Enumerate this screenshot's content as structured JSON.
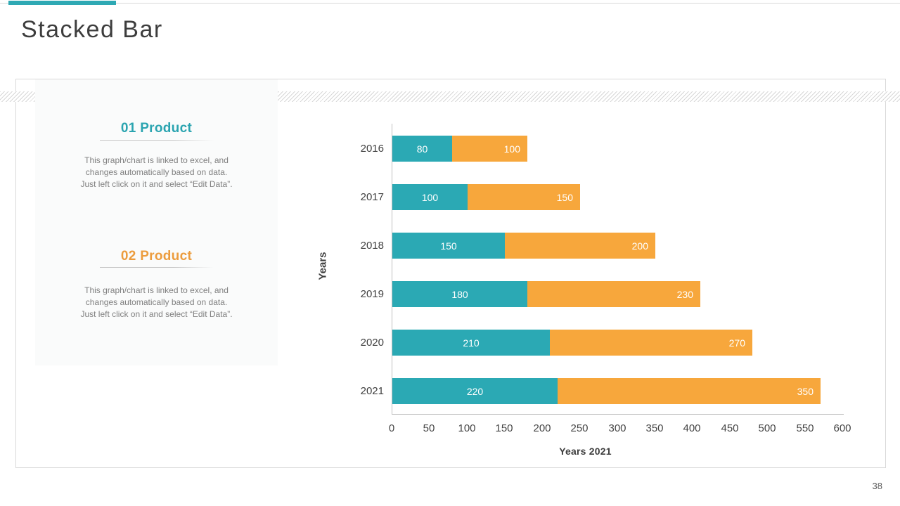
{
  "slide": {
    "title": "Stacked Bar",
    "page_number": "38",
    "accent_color": "#2EA9B4"
  },
  "info_panel": {
    "sections": [
      {
        "heading": "01 Product",
        "heading_color": "#2AA4B0",
        "description_lines": [
          "This graph/chart is linked to excel, and",
          "changes automatically based on data.",
          "Just left click on it and select “Edit Data”."
        ]
      },
      {
        "heading": "02 Product",
        "heading_color": "#EC9C3D",
        "description_lines": [
          "This graph/chart is linked to excel, and",
          "changes automatically based on data.",
          "Just left click on it and select “Edit Data”."
        ]
      }
    ]
  },
  "chart_data": {
    "type": "bar",
    "orientation": "horizontal",
    "stacked": true,
    "categories": [
      "2016",
      "2017",
      "2018",
      "2019",
      "2020",
      "2021"
    ],
    "series": [
      {
        "name": "01 Product",
        "color": "#2BA9B4",
        "values": [
          80,
          100,
          150,
          180,
          210,
          220
        ],
        "value_label_position": "center"
      },
      {
        "name": "02 Product",
        "color": "#F7A73C",
        "values": [
          100,
          150,
          200,
          230,
          270,
          350
        ],
        "value_label_position": "inside-end"
      }
    ],
    "value_label_color": "#FFFFFF",
    "xlabel": "Years 2021",
    "ylabel": "Years",
    "xlim": [
      0,
      600
    ],
    "xticks": [
      0,
      50,
      100,
      150,
      200,
      250,
      300,
      350,
      400,
      450,
      500,
      550,
      600
    ],
    "grid": false,
    "legend": "none",
    "axis_color": "#BFBFBF",
    "tick_label_color": "#444444"
  }
}
